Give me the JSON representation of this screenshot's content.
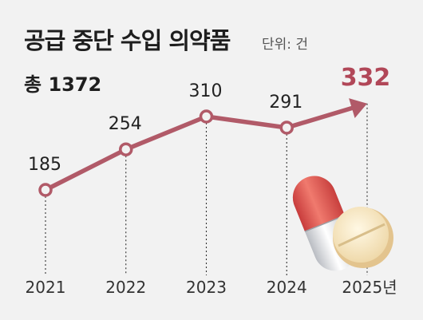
{
  "title": "공급 중단 수입 의약품",
  "unit": "단위: 건",
  "total_label": "총",
  "total_value": "1372",
  "colors": {
    "line": "#b15a68",
    "highlight": "#b14758",
    "text": "#1e1e1e",
    "background": "#f2f2f2"
  },
  "chart_data": {
    "type": "line",
    "categories": [
      "2021",
      "2022",
      "2023",
      "2024",
      "2025년"
    ],
    "values": [
      185,
      254,
      310,
      291,
      332
    ],
    "data_labels": [
      "185",
      "254",
      "310",
      "291",
      "332"
    ],
    "highlight_last": true,
    "grid": false,
    "decoration": [
      "pill-capsule-icon",
      "tablet-icon"
    ]
  }
}
